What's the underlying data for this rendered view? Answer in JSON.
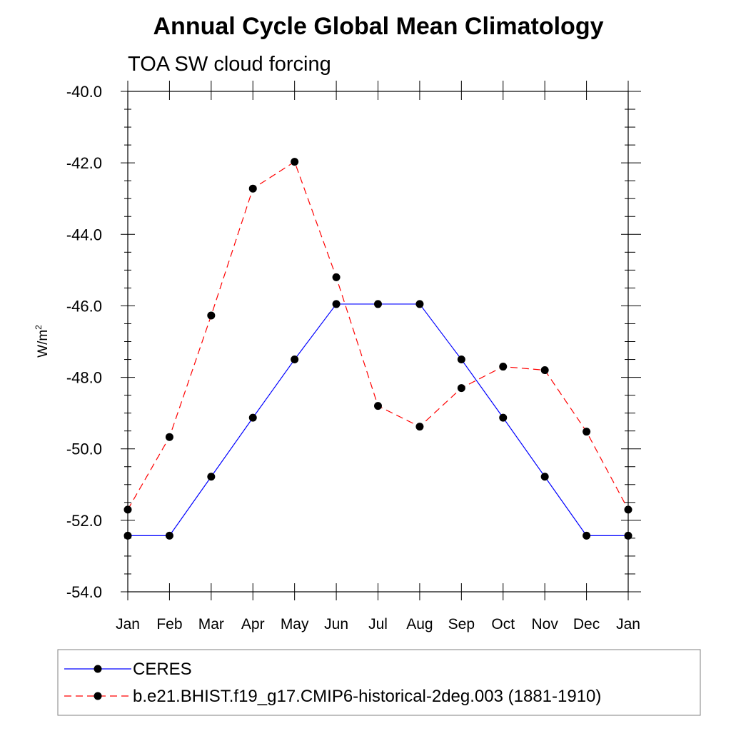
{
  "chart_data": {
    "type": "line",
    "title": "Annual Cycle Global Mean Climatology",
    "subtitle": "TOA SW cloud forcing",
    "ylabel": "W/m",
    "ylabel_sup": "2",
    "ylim": [
      -54.0,
      -40.0
    ],
    "yticks": [
      "-40.0",
      "-42.0",
      "-44.0",
      "-46.0",
      "-48.0",
      "-50.0",
      "-52.0",
      "-54.0"
    ],
    "categories": [
      "Jan",
      "Feb",
      "Mar",
      "Apr",
      "May",
      "Jun",
      "Jul",
      "Aug",
      "Sep",
      "Oct",
      "Nov",
      "Dec",
      "Jan"
    ],
    "grid": false,
    "legend_position": "bottom",
    "series": [
      {
        "name": "CERES",
        "color": "#0000ff",
        "style": "solid",
        "values": [
          -52.43,
          -52.43,
          -50.78,
          -49.13,
          -47.5,
          -45.95,
          -45.95,
          -45.95,
          -47.5,
          -49.13,
          -50.78,
          -52.43,
          -52.43
        ]
      },
      {
        "name": "b.e21.BHIST.f19_g17.CMIP6-historical-2deg.003 (1881-1910)",
        "color": "#ff0000",
        "style": "dashed",
        "values": [
          -51.7,
          -49.67,
          -46.27,
          -42.72,
          -41.97,
          -45.2,
          -48.8,
          -49.38,
          -48.3,
          -47.7,
          -47.8,
          -49.52,
          -51.7
        ]
      }
    ]
  }
}
